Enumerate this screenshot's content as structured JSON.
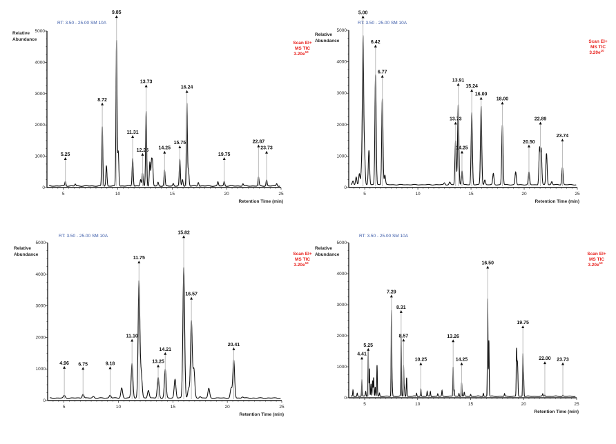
{
  "chart_data": [
    {
      "type": "line",
      "header": "RT: 3.50 - 25.00   SM 10A",
      "ylabel": [
        "Relative",
        "Abundance"
      ],
      "xlabel": "Retention Time (min)",
      "scan_info": [
        "Scan EI+",
        "MS TIC",
        "3.20e",
        "10"
      ],
      "xlim": [
        3.5,
        25
      ],
      "ylim": [
        0,
        5000
      ],
      "xticks": [
        5,
        10,
        15,
        20,
        25
      ],
      "yticks": [
        0,
        1000,
        2000,
        3000,
        4000,
        5000
      ],
      "sigma": 0.05,
      "baseline": 50,
      "peaks": [
        [
          5.19,
          150
        ],
        [
          6.1,
          60
        ],
        [
          8.58,
          1900
        ],
        [
          8.96,
          650
        ],
        [
          9.89,
          4650
        ],
        [
          10.05,
          1100
        ],
        [
          11.37,
          900
        ],
        [
          12.1,
          200
        ],
        [
          12.28,
          400
        ],
        [
          12.61,
          2400
        ],
        [
          12.95,
          750
        ],
        [
          13.1,
          750
        ],
        [
          13.2,
          700
        ],
        [
          13.7,
          120
        ],
        [
          14.3,
          500
        ],
        [
          15.1,
          80
        ],
        [
          15.7,
          850
        ],
        [
          15.95,
          200
        ],
        [
          16.35,
          2650
        ],
        [
          16.5,
          500
        ],
        [
          17.4,
          120
        ],
        [
          19.2,
          130
        ],
        [
          19.78,
          150
        ],
        [
          21.5,
          70
        ],
        [
          22.93,
          280
        ],
        [
          23.67,
          200
        ],
        [
          24.6,
          80
        ]
      ],
      "annotations": [
        {
          "label": "5.25",
          "x": 5.19,
          "y": 925
        },
        {
          "label": "8.72",
          "x": 8.58,
          "y": 2670
        },
        {
          "label": "9.85",
          "x": 9.89,
          "y": 5460
        },
        {
          "label": "11.31",
          "x": 11.37,
          "y": 1630
        },
        {
          "label": "12.25",
          "x": 12.28,
          "y": 1060
        },
        {
          "label": "13.73",
          "x": 12.61,
          "y": 3250
        },
        {
          "label": "14.25",
          "x": 14.3,
          "y": 1130
        },
        {
          "label": "15.75",
          "x": 15.7,
          "y": 1300
        },
        {
          "label": "16.24",
          "x": 16.35,
          "y": 3070
        },
        {
          "label": "19.75",
          "x": 19.78,
          "y": 925
        },
        {
          "label": "22.87",
          "x": 22.93,
          "y": 1330
        },
        {
          "label": "23.73",
          "x": 23.67,
          "y": 1130
        }
      ]
    },
    {
      "type": "line",
      "header": "RT: 3.50 - 25.00   SM 10A",
      "ylabel": [
        "Relative",
        "Abundance"
      ],
      "xlabel": "Retention Time (min)",
      "scan_info": [
        "Scan EI+",
        "MS TIC",
        "3.20e",
        "10"
      ],
      "xlim": [
        3.5,
        25
      ],
      "ylim": [
        0,
        5000
      ],
      "xticks": [
        5,
        10,
        15,
        20,
        25
      ],
      "yticks": [
        0,
        1000,
        2000,
        3000,
        4000,
        5000
      ],
      "sigma": 0.06,
      "baseline": 90,
      "peaks": [
        [
          3.9,
          120
        ],
        [
          4.2,
          250
        ],
        [
          4.5,
          350
        ],
        [
          4.7,
          450
        ],
        [
          4.84,
          4650
        ],
        [
          4.98,
          1000
        ],
        [
          5.4,
          1100
        ],
        [
          6.02,
          3500
        ],
        [
          6.66,
          2750
        ],
        [
          6.9,
          300
        ],
        [
          12.5,
          60
        ],
        [
          13.0,
          80
        ],
        [
          13.55,
          1400
        ],
        [
          13.8,
          2550
        ],
        [
          14.15,
          450
        ],
        [
          15.07,
          2300
        ],
        [
          15.95,
          2500
        ],
        [
          16.3,
          150
        ],
        [
          17.1,
          350
        ],
        [
          17.95,
          1900
        ],
        [
          19.2,
          400
        ],
        [
          20.45,
          400
        ],
        [
          21.45,
          1150
        ],
        [
          21.6,
          1100
        ],
        [
          22.1,
          1000
        ],
        [
          22.6,
          100
        ],
        [
          23.6,
          550
        ]
      ],
      "annotations": [
        {
          "label": "5.00",
          "x": 4.84,
          "y": 5430
        },
        {
          "label": "6.42",
          "x": 6.02,
          "y": 4500
        },
        {
          "label": "6.77",
          "x": 6.66,
          "y": 3540
        },
        {
          "label": "13.73",
          "x": 13.55,
          "y": 2050
        },
        {
          "label": "13.91",
          "x": 13.8,
          "y": 3280
        },
        {
          "label": "14.25",
          "x": 14.15,
          "y": 1130
        },
        {
          "label": "15.24",
          "x": 15.07,
          "y": 3090
        },
        {
          "label": "16.00",
          "x": 15.95,
          "y": 2840
        },
        {
          "label": "18.00",
          "x": 17.95,
          "y": 2690
        },
        {
          "label": "20.50",
          "x": 20.45,
          "y": 1320
        },
        {
          "label": "22.89",
          "x": 21.53,
          "y": 2050
        },
        {
          "label": "23.74",
          "x": 23.6,
          "y": 1510
        }
      ]
    },
    {
      "type": "line",
      "header": "RT: 3.50 - 25.00   SM 10A",
      "ylabel": [
        "Relative",
        "Abundance"
      ],
      "xlabel": "Retention Time (min)",
      "scan_info": [
        "Scan EI+",
        "MS TIC",
        "3.20e",
        "10"
      ],
      "xlim": [
        3.5,
        25
      ],
      "ylim": [
        0,
        5000
      ],
      "xticks": [
        5,
        10,
        15,
        20,
        25
      ],
      "yticks": [
        0,
        1000,
        2000,
        3000,
        4000,
        5000
      ],
      "sigma": 0.08,
      "baseline": 80,
      "peaks": [
        [
          5.03,
          80
        ],
        [
          6.75,
          130
        ],
        [
          7.7,
          50
        ],
        [
          9.24,
          100
        ],
        [
          10.3,
          320
        ],
        [
          11.25,
          1100
        ],
        [
          11.89,
          3700
        ],
        [
          12.1,
          750
        ],
        [
          12.75,
          250
        ],
        [
          13.65,
          650
        ],
        [
          14.3,
          900
        ],
        [
          15.2,
          600
        ],
        [
          16.0,
          4150
        ],
        [
          16.45,
          300
        ],
        [
          16.7,
          2450
        ],
        [
          16.93,
          900
        ],
        [
          17.5,
          50
        ],
        [
          18.3,
          300
        ],
        [
          20.35,
          300
        ],
        [
          20.59,
          1200
        ],
        [
          21.4,
          40
        ]
      ],
      "annotations": [
        {
          "label": "4.96",
          "x": 5.03,
          "y": 1050
        },
        {
          "label": "6.75",
          "x": 6.75,
          "y": 1020
        },
        {
          "label": "9.18",
          "x": 9.24,
          "y": 1040
        },
        {
          "label": "11.10",
          "x": 11.25,
          "y": 1910
        },
        {
          "label": "11.75",
          "x": 11.89,
          "y": 4390
        },
        {
          "label": "13.25",
          "x": 13.65,
          "y": 1100
        },
        {
          "label": "14.21",
          "x": 14.3,
          "y": 1490
        },
        {
          "label": "15.82",
          "x": 16.0,
          "y": 5190
        },
        {
          "label": "16.57",
          "x": 16.7,
          "y": 3240
        },
        {
          "label": "20.41",
          "x": 20.59,
          "y": 1640
        }
      ]
    },
    {
      "type": "line",
      "header": "RT: 3.50 - 25.00   SM 10A",
      "ylabel": [
        "Relative",
        "Abundance"
      ],
      "xlabel": "Retention Time (min)",
      "scan_info": [
        "Scan EI+",
        "MS TIC",
        "3.20e",
        "10"
      ],
      "xlim": [
        3.5,
        25
      ],
      "ylim": [
        0,
        5000
      ],
      "xticks": [
        5,
        10,
        15,
        20,
        25
      ],
      "yticks": [
        0,
        1000,
        2000,
        3000,
        4000,
        5000
      ],
      "sigma": 0.03,
      "baseline": 50,
      "peaks": [
        [
          3.9,
          200
        ],
        [
          4.3,
          100
        ],
        [
          4.74,
          550
        ],
        [
          5.1,
          150
        ],
        [
          5.34,
          1500
        ],
        [
          5.45,
          900
        ],
        [
          5.6,
          400
        ],
        [
          5.75,
          500
        ],
        [
          5.85,
          600
        ],
        [
          6.0,
          300
        ],
        [
          6.17,
          1000
        ],
        [
          6.4,
          100
        ],
        [
          7.53,
          2750
        ],
        [
          7.6,
          350
        ],
        [
          8.44,
          2000
        ],
        [
          8.67,
          1000
        ],
        [
          8.75,
          250
        ],
        [
          8.96,
          600
        ],
        [
          9.9,
          100
        ],
        [
          10.3,
          250
        ],
        [
          10.9,
          150
        ],
        [
          11.2,
          150
        ],
        [
          11.9,
          80
        ],
        [
          12.3,
          180
        ],
        [
          13.35,
          950
        ],
        [
          13.45,
          200
        ],
        [
          13.9,
          100
        ],
        [
          14.15,
          450
        ],
        [
          14.4,
          120
        ],
        [
          15.0,
          60
        ],
        [
          16.2,
          100
        ],
        [
          16.61,
          3150
        ],
        [
          16.72,
          1800
        ],
        [
          18.2,
          80
        ],
        [
          19.33,
          1500
        ],
        [
          19.4,
          900
        ],
        [
          19.45,
          600
        ],
        [
          19.93,
          1350
        ],
        [
          20.0,
          600
        ],
        [
          21.8,
          70
        ],
        [
          22.0,
          50
        ],
        [
          23.7,
          40
        ]
      ],
      "annotations": [
        {
          "label": "4.41",
          "x": 4.74,
          "y": 1280
        },
        {
          "label": "5.25",
          "x": 5.34,
          "y": 1560
        },
        {
          "label": "7.29",
          "x": 7.53,
          "y": 3280
        },
        {
          "label": "8.31",
          "x": 8.44,
          "y": 2780
        },
        {
          "label": "8.57",
          "x": 8.67,
          "y": 1860
        },
        {
          "label": "10.25",
          "x": 10.3,
          "y": 1100
        },
        {
          "label": "13.26",
          "x": 13.35,
          "y": 1840
        },
        {
          "label": "14.25",
          "x": 14.15,
          "y": 1100
        },
        {
          "label": "16.50",
          "x": 16.61,
          "y": 4210
        },
        {
          "label": "19.75",
          "x": 19.93,
          "y": 2290
        },
        {
          "label": "22.00",
          "x": 22.0,
          "y": 1130
        },
        {
          "label": "23.73",
          "x": 23.7,
          "y": 1100
        }
      ]
    }
  ]
}
